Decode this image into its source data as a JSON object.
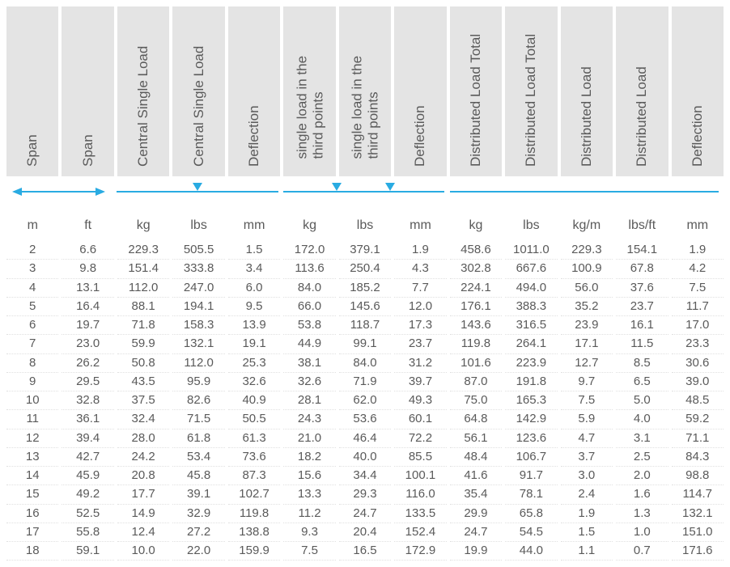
{
  "headers": [
    "Span",
    "Span",
    "Central Single Load",
    "Central Single Load",
    "Deflection",
    "single load in the\nthird points",
    "single load in the\nthird points",
    "Deflection",
    "Distributed Load Total",
    "Distributed Load Total",
    "Distributed Load",
    "Distributed Load",
    "Deflection"
  ],
  "units": [
    "m",
    "ft",
    "kg",
    "lbs",
    "mm",
    "kg",
    "lbs",
    "mm",
    "kg",
    "lbs",
    "kg/m",
    "lbs/ft",
    "mm"
  ],
  "rows": [
    [
      "2",
      "6.6",
      "229.3",
      "505.5",
      "1.5",
      "172.0",
      "379.1",
      "1.9",
      "458.6",
      "1011.0",
      "229.3",
      "154.1",
      "1.9"
    ],
    [
      "3",
      "9.8",
      "151.4",
      "333.8",
      "3.4",
      "113.6",
      "250.4",
      "4.3",
      "302.8",
      "667.6",
      "100.9",
      "67.8",
      "4.2"
    ],
    [
      "4",
      "13.1",
      "112.0",
      "247.0",
      "6.0",
      "84.0",
      "185.2",
      "7.7",
      "224.1",
      "494.0",
      "56.0",
      "37.6",
      "7.5"
    ],
    [
      "5",
      "16.4",
      "88.1",
      "194.1",
      "9.5",
      "66.0",
      "145.6",
      "12.0",
      "176.1",
      "388.3",
      "35.2",
      "23.7",
      "11.7"
    ],
    [
      "6",
      "19.7",
      "71.8",
      "158.3",
      "13.9",
      "53.8",
      "118.7",
      "17.3",
      "143.6",
      "316.5",
      "23.9",
      "16.1",
      "17.0"
    ],
    [
      "7",
      "23.0",
      "59.9",
      "132.1",
      "19.1",
      "44.9",
      "99.1",
      "23.7",
      "119.8",
      "264.1",
      "17.1",
      "11.5",
      "23.3"
    ],
    [
      "8",
      "26.2",
      "50.8",
      "112.0",
      "25.3",
      "38.1",
      "84.0",
      "31.2",
      "101.6",
      "223.9",
      "12.7",
      "8.5",
      "30.6"
    ],
    [
      "9",
      "29.5",
      "43.5",
      "95.9",
      "32.6",
      "32.6",
      "71.9",
      "39.7",
      "87.0",
      "191.8",
      "9.7",
      "6.5",
      "39.0"
    ],
    [
      "10",
      "32.8",
      "37.5",
      "82.6",
      "40.9",
      "28.1",
      "62.0",
      "49.3",
      "75.0",
      "165.3",
      "7.5",
      "5.0",
      "48.5"
    ],
    [
      "11",
      "36.1",
      "32.4",
      "71.5",
      "50.5",
      "24.3",
      "53.6",
      "60.1",
      "64.8",
      "142.9",
      "5.9",
      "4.0",
      "59.2"
    ],
    [
      "12",
      "39.4",
      "28.0",
      "61.8",
      "61.3",
      "21.0",
      "46.4",
      "72.2",
      "56.1",
      "123.6",
      "4.7",
      "3.1",
      "71.1"
    ],
    [
      "13",
      "42.7",
      "24.2",
      "53.4",
      "73.6",
      "18.2",
      "40.0",
      "85.5",
      "48.4",
      "106.7",
      "3.7",
      "2.5",
      "84.3"
    ],
    [
      "14",
      "45.9",
      "20.8",
      "45.8",
      "87.3",
      "15.6",
      "34.4",
      "100.1",
      "41.6",
      "91.7",
      "3.0",
      "2.0",
      "98.8"
    ],
    [
      "15",
      "49.2",
      "17.7",
      "39.1",
      "102.7",
      "13.3",
      "29.3",
      "116.0",
      "35.4",
      "78.1",
      "2.4",
      "1.6",
      "114.7"
    ],
    [
      "16",
      "52.5",
      "14.9",
      "32.9",
      "119.8",
      "11.2",
      "24.7",
      "133.5",
      "29.9",
      "65.8",
      "1.9",
      "1.3",
      "132.1"
    ],
    [
      "17",
      "55.8",
      "12.4",
      "27.2",
      "138.8",
      "9.3",
      "20.4",
      "152.4",
      "24.7",
      "54.5",
      "1.5",
      "1.0",
      "151.0"
    ],
    [
      "18",
      "59.1",
      "10.0",
      "22.0",
      "159.9",
      "7.5",
      "16.5",
      "172.9",
      "19.9",
      "44.0",
      "1.1",
      "0.7",
      "171.6"
    ]
  ],
  "style": {
    "accent": "#29abe2",
    "headerBg": "#e4e4e4",
    "text": "#5a5a5a",
    "rowBorder": "#e0e0e0",
    "indicators": {
      "group1": {
        "type": "double-arrow",
        "leftPct": 1,
        "widthPct": 12.5,
        "topPx": 14
      },
      "group2": {
        "type": "line",
        "leftPct": 15.4,
        "widthPct": 22.5,
        "topPx": 14,
        "tri": [
          {
            "pct": 50
          }
        ]
      },
      "group3": {
        "type": "line",
        "leftPct": 38.6,
        "widthPct": 22.5,
        "topPx": 14,
        "tri": [
          {
            "pct": 33
          },
          {
            "pct": 66
          }
        ]
      },
      "group4": {
        "type": "line",
        "leftPct": 61.8,
        "widthPct": 37.5,
        "topPx": 14,
        "tri": []
      }
    }
  }
}
